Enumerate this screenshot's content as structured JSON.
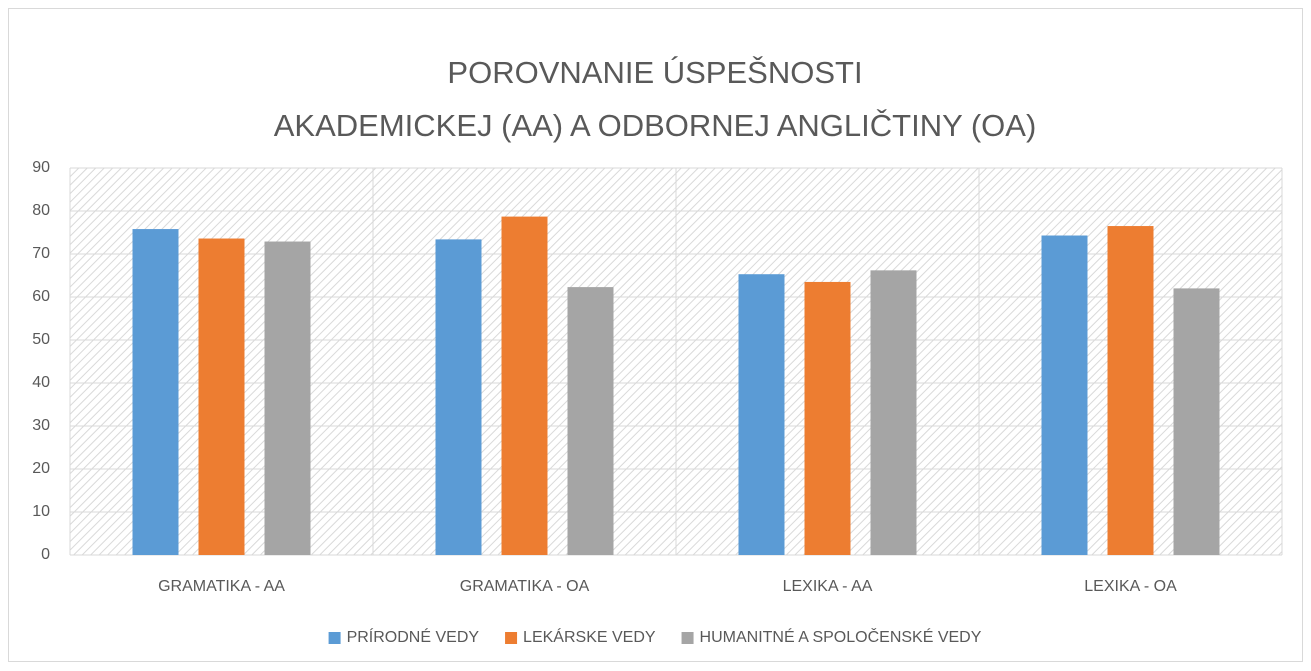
{
  "chart_data": {
    "type": "bar",
    "title": [
      "POROVNANIE ÚSPEŠNOSTI",
      "AKADEMICKEJ (AA) A ODBORNEJ ANGLIČTINY (OA)"
    ],
    "categories": [
      "GRAMATIKA - AA",
      "GRAMATIKA - OA",
      "LEXIKA - AA",
      "LEXIKA - OA"
    ],
    "series": [
      {
        "name": "PRÍRODNÉ VEDY",
        "color": "#5b9bd5",
        "values": [
          75.8,
          73.4,
          65.3,
          74.3
        ]
      },
      {
        "name": "LEKÁRSKE VEDY",
        "color": "#ed7d31",
        "values": [
          73.6,
          78.7,
          63.5,
          76.5
        ]
      },
      {
        "name": "HUMANITNÉ A SPOLOČENSKÉ VEDY",
        "color": "#a5a5a5",
        "values": [
          72.9,
          62.3,
          66.2,
          62.0
        ]
      }
    ],
    "ylim": [
      0,
      90
    ],
    "yticks": [
      0,
      10,
      20,
      30,
      40,
      50,
      60,
      70,
      80,
      90
    ],
    "grid": true,
    "legend": "bottom"
  }
}
